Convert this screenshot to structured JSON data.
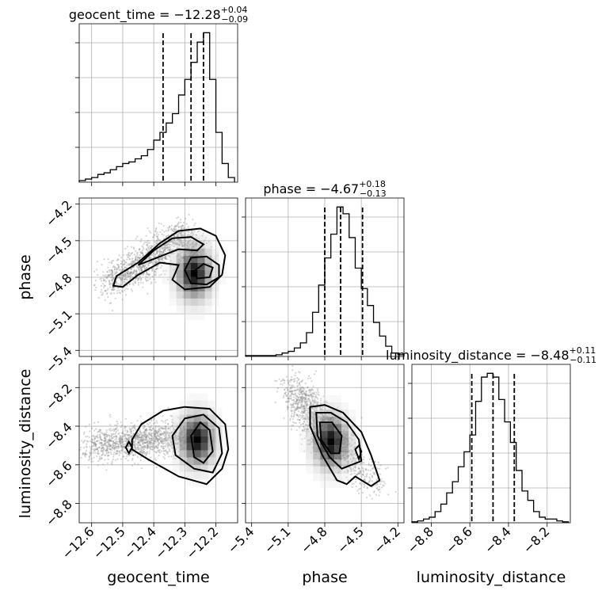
{
  "chart_data": {
    "type": "corner",
    "parameters": [
      {
        "name": "geocent_time",
        "label": "geocent_time",
        "median": -12.28,
        "err_plus": 0.04,
        "err_minus": 0.09,
        "title_main": "geocent_time = −12.28",
        "title_sup": "+0.04",
        "title_sub": "−0.09",
        "range": [
          -12.64,
          -12.13
        ],
        "ticks": [
          -12.6,
          -12.5,
          -12.4,
          -12.3,
          -12.2
        ],
        "tick_labels": [
          "−12.6",
          "−12.5",
          "−12.4",
          "−12.3",
          "−12.2"
        ],
        "quantiles": [
          -12.37,
          -12.28,
          -12.24
        ],
        "hist_edges": [
          -12.64,
          -12.62,
          -12.6,
          -12.58,
          -12.56,
          -12.54,
          -12.52,
          -12.5,
          -12.48,
          -12.46,
          -12.44,
          -12.42,
          -12.4,
          -12.38,
          -12.36,
          -12.34,
          -12.32,
          -12.3,
          -12.28,
          -12.26,
          -12.24,
          -12.22,
          -12.2,
          -12.18,
          -12.16,
          -12.14
        ],
        "hist_counts": [
          1,
          2,
          3,
          5,
          6,
          8,
          10,
          12,
          13,
          15,
          17,
          21,
          27,
          32,
          38,
          44,
          56,
          66,
          77,
          90,
          96,
          66,
          32,
          12,
          3
        ]
      },
      {
        "name": "phase",
        "label": "phase",
        "median": -4.67,
        "err_plus": 0.18,
        "err_minus": 0.13,
        "title_main": "phase = −4.67",
        "title_sup": "+0.18",
        "title_sub": "−0.13",
        "range": [
          -5.45,
          -4.15
        ],
        "ticks": [
          -5.4,
          -5.1,
          -4.8,
          -4.5,
          -4.2
        ],
        "tick_labels": [
          "−5.4",
          "−5.1",
          "−4.8",
          "−4.5",
          "−4.2"
        ],
        "quantiles": [
          -4.8,
          -4.67,
          -4.49
        ],
        "hist_edges": [
          -5.45,
          -5.4,
          -5.35,
          -5.3,
          -5.25,
          -5.2,
          -5.15,
          -5.1,
          -5.05,
          -5.0,
          -4.95,
          -4.9,
          -4.85,
          -4.8,
          -4.75,
          -4.7,
          -4.65,
          -4.6,
          -4.55,
          -4.5,
          -4.45,
          -4.4,
          -4.35,
          -4.3,
          -4.25,
          -4.2,
          -4.15
        ],
        "hist_counts": [
          0.5,
          0.5,
          0.5,
          0.5,
          0.5,
          1,
          2,
          3,
          5,
          8,
          14,
          26,
          42,
          58,
          72,
          88,
          84,
          70,
          52,
          40,
          30,
          20,
          12,
          6,
          2,
          1
        ]
      },
      {
        "name": "luminosity_distance",
        "label": "luminosity_distance",
        "median": -8.48,
        "err_plus": 0.11,
        "err_minus": 0.11,
        "title_main": "luminosity_distance = −8.48",
        "title_sup": "+0.11",
        "title_sub": "−0.11",
        "range": [
          -8.9,
          -8.08
        ],
        "ticks": [
          -8.8,
          -8.6,
          -8.4,
          -8.2
        ],
        "tick_labels": [
          "−8.8",
          "−8.6",
          "−8.4",
          "−8.2"
        ],
        "quantiles": [
          -8.59,
          -8.48,
          -8.37
        ],
        "hist_edges": [
          -8.9,
          -8.87,
          -8.84,
          -8.81,
          -8.78,
          -8.75,
          -8.72,
          -8.69,
          -8.66,
          -8.63,
          -8.6,
          -8.57,
          -8.54,
          -8.51,
          -8.48,
          -8.45,
          -8.42,
          -8.39,
          -8.36,
          -8.33,
          -8.3,
          -8.27,
          -8.24,
          -8.21,
          -8.18,
          -8.15,
          -8.12,
          -8.09
        ],
        "hist_counts": [
          0.5,
          1,
          2,
          3,
          6,
          10,
          16,
          22,
          30,
          38,
          47,
          65,
          78,
          80,
          78,
          66,
          54,
          43,
          28,
          17,
          12,
          6,
          3,
          2,
          2,
          1,
          0.5
        ]
      }
    ],
    "pairs": [
      {
        "x": "geocent_time",
        "y": "phase",
        "mode": [
          -12.27,
          -4.77
        ],
        "ridge": [
          [
            -12.55,
            -4.85
          ],
          [
            -12.45,
            -4.72
          ],
          [
            -12.38,
            -4.58
          ],
          [
            -12.32,
            -4.48
          ],
          [
            -12.28,
            -4.52
          ],
          [
            -12.27,
            -4.77
          ]
        ],
        "contours": [
          [
            [
              -12.53,
              -4.87
            ],
            [
              -12.52,
              -4.79
            ],
            [
              -12.45,
              -4.68
            ],
            [
              -12.38,
              -4.52
            ],
            [
              -12.32,
              -4.42
            ],
            [
              -12.25,
              -4.4
            ],
            [
              -12.2,
              -4.46
            ],
            [
              -12.17,
              -4.62
            ],
            [
              -12.18,
              -4.78
            ],
            [
              -12.22,
              -4.88
            ],
            [
              -12.3,
              -4.9
            ],
            [
              -12.34,
              -4.82
            ],
            [
              -12.32,
              -4.7
            ],
            [
              -12.38,
              -4.68
            ],
            [
              -12.45,
              -4.78
            ],
            [
              -12.5,
              -4.88
            ],
            [
              -12.53,
              -4.87
            ]
          ],
          [
            [
              -12.45,
              -4.7
            ],
            [
              -12.4,
              -4.58
            ],
            [
              -12.34,
              -4.48
            ],
            [
              -12.28,
              -4.47
            ],
            [
              -12.24,
              -4.53
            ],
            [
              -12.26,
              -4.58
            ],
            [
              -12.32,
              -4.57
            ],
            [
              -12.38,
              -4.63
            ],
            [
              -12.45,
              -4.7
            ]
          ],
          [
            [
              -12.3,
              -4.74
            ],
            [
              -12.28,
              -4.64
            ],
            [
              -12.23,
              -4.63
            ],
            [
              -12.19,
              -4.7
            ],
            [
              -12.19,
              -4.8
            ],
            [
              -12.23,
              -4.86
            ],
            [
              -12.28,
              -4.85
            ],
            [
              -12.3,
              -4.74
            ]
          ],
          [
            [
              -12.27,
              -4.75
            ],
            [
              -12.24,
              -4.69
            ],
            [
              -12.21,
              -4.72
            ],
            [
              -12.22,
              -4.8
            ],
            [
              -12.26,
              -4.81
            ],
            [
              -12.27,
              -4.75
            ]
          ]
        ]
      },
      {
        "x": "geocent_time",
        "y": "luminosity_distance",
        "mode": [
          -12.26,
          -8.47
        ],
        "ridge": [
          [
            -12.6,
            -8.5
          ],
          [
            -12.45,
            -8.48
          ],
          [
            -12.35,
            -8.46
          ],
          [
            -12.26,
            -8.47
          ]
        ],
        "contours": [
          [
            [
              -12.47,
              -8.47
            ],
            [
              -12.44,
              -8.39
            ],
            [
              -12.37,
              -8.32
            ],
            [
              -12.3,
              -8.3
            ],
            [
              -12.22,
              -8.31
            ],
            [
              -12.17,
              -8.39
            ],
            [
              -12.16,
              -8.52
            ],
            [
              -12.18,
              -8.62
            ],
            [
              -12.23,
              -8.7
            ],
            [
              -12.32,
              -8.66
            ],
            [
              -12.42,
              -8.57
            ],
            [
              -12.47,
              -8.52
            ],
            [
              -12.47,
              -8.47
            ]
          ],
          [
            [
              -12.34,
              -8.45
            ],
            [
              -12.3,
              -8.36
            ],
            [
              -12.24,
              -8.34
            ],
            [
              -12.19,
              -8.41
            ],
            [
              -12.18,
              -8.54
            ],
            [
              -12.21,
              -8.64
            ],
            [
              -12.27,
              -8.62
            ],
            [
              -12.33,
              -8.55
            ],
            [
              -12.34,
              -8.45
            ]
          ],
          [
            [
              -12.28,
              -8.45
            ],
            [
              -12.25,
              -8.38
            ],
            [
              -12.22,
              -8.42
            ],
            [
              -12.21,
              -8.53
            ],
            [
              -12.24,
              -8.59
            ],
            [
              -12.27,
              -8.56
            ],
            [
              -12.28,
              -8.45
            ]
          ],
          [
            [
              -12.49,
              -8.51
            ],
            [
              -12.48,
              -8.48
            ],
            [
              -12.47,
              -8.51
            ],
            [
              -12.48,
              -8.54
            ],
            [
              -12.49,
              -8.51
            ]
          ]
        ]
      },
      {
        "x": "phase",
        "y": "luminosity_distance",
        "mode": [
          -4.75,
          -8.48
        ],
        "ridge": [
          [
            -5.05,
            -8.2
          ],
          [
            -4.9,
            -8.35
          ],
          [
            -4.75,
            -8.48
          ],
          [
            -4.55,
            -8.6
          ],
          [
            -4.35,
            -8.72
          ]
        ],
        "contours": [
          [
            [
              -4.92,
              -8.3
            ],
            [
              -4.8,
              -8.29
            ],
            [
              -4.65,
              -8.33
            ],
            [
              -4.5,
              -8.43
            ],
            [
              -4.42,
              -8.55
            ],
            [
              -4.35,
              -8.68
            ],
            [
              -4.42,
              -8.71
            ],
            [
              -4.55,
              -8.66
            ],
            [
              -4.62,
              -8.7
            ],
            [
              -4.7,
              -8.68
            ],
            [
              -4.82,
              -8.55
            ],
            [
              -4.92,
              -8.4
            ],
            [
              -4.92,
              -8.3
            ]
          ],
          [
            [
              -4.87,
              -8.33
            ],
            [
              -4.75,
              -8.33
            ],
            [
              -4.62,
              -8.38
            ],
            [
              -4.52,
              -8.47
            ],
            [
              -4.5,
              -8.58
            ],
            [
              -4.58,
              -8.6
            ],
            [
              -4.66,
              -8.62
            ],
            [
              -4.76,
              -8.56
            ],
            [
              -4.86,
              -8.45
            ],
            [
              -4.87,
              -8.33
            ]
          ],
          [
            [
              -4.84,
              -8.38
            ],
            [
              -4.74,
              -8.38
            ],
            [
              -4.66,
              -8.45
            ],
            [
              -4.68,
              -8.54
            ],
            [
              -4.75,
              -8.54
            ],
            [
              -4.83,
              -8.47
            ],
            [
              -4.84,
              -8.38
            ]
          ],
          [
            [
              -4.55,
              -8.52
            ],
            [
              -4.52,
              -8.5
            ],
            [
              -4.5,
              -8.53
            ],
            [
              -4.52,
              -8.57
            ],
            [
              -4.55,
              -8.52
            ]
          ]
        ]
      }
    ],
    "grid": true,
    "scatter_color": "#888888",
    "line_color": "#000000"
  }
}
